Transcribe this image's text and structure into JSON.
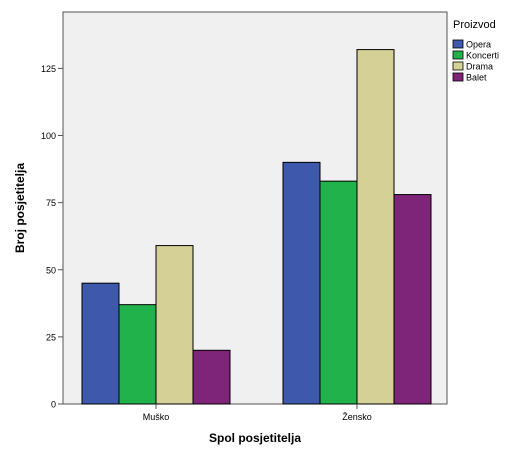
{
  "chart_data": {
    "type": "bar",
    "xlabel": "Spol posjetitelja",
    "ylabel": "Broj posjetitelja",
    "categories": [
      "Muško",
      "Žensko"
    ],
    "series": [
      {
        "name": "Opera",
        "color": "#3E58AC",
        "values": [
          45,
          90
        ]
      },
      {
        "name": "Koncerti",
        "color": "#21B24B",
        "values": [
          37,
          83
        ]
      },
      {
        "name": "Drama",
        "color": "#D5D096",
        "values": [
          59,
          132
        ]
      },
      {
        "name": "Balet",
        "color": "#7E2479",
        "values": [
          20,
          78
        ]
      }
    ],
    "legend_title": "Proizvod",
    "legend_position": "top-right",
    "yticks": [
      0,
      25,
      50,
      75,
      100,
      125
    ],
    "ylim": [
      0,
      146
    ],
    "grid": false,
    "plot_background": "#F0F0F0"
  }
}
